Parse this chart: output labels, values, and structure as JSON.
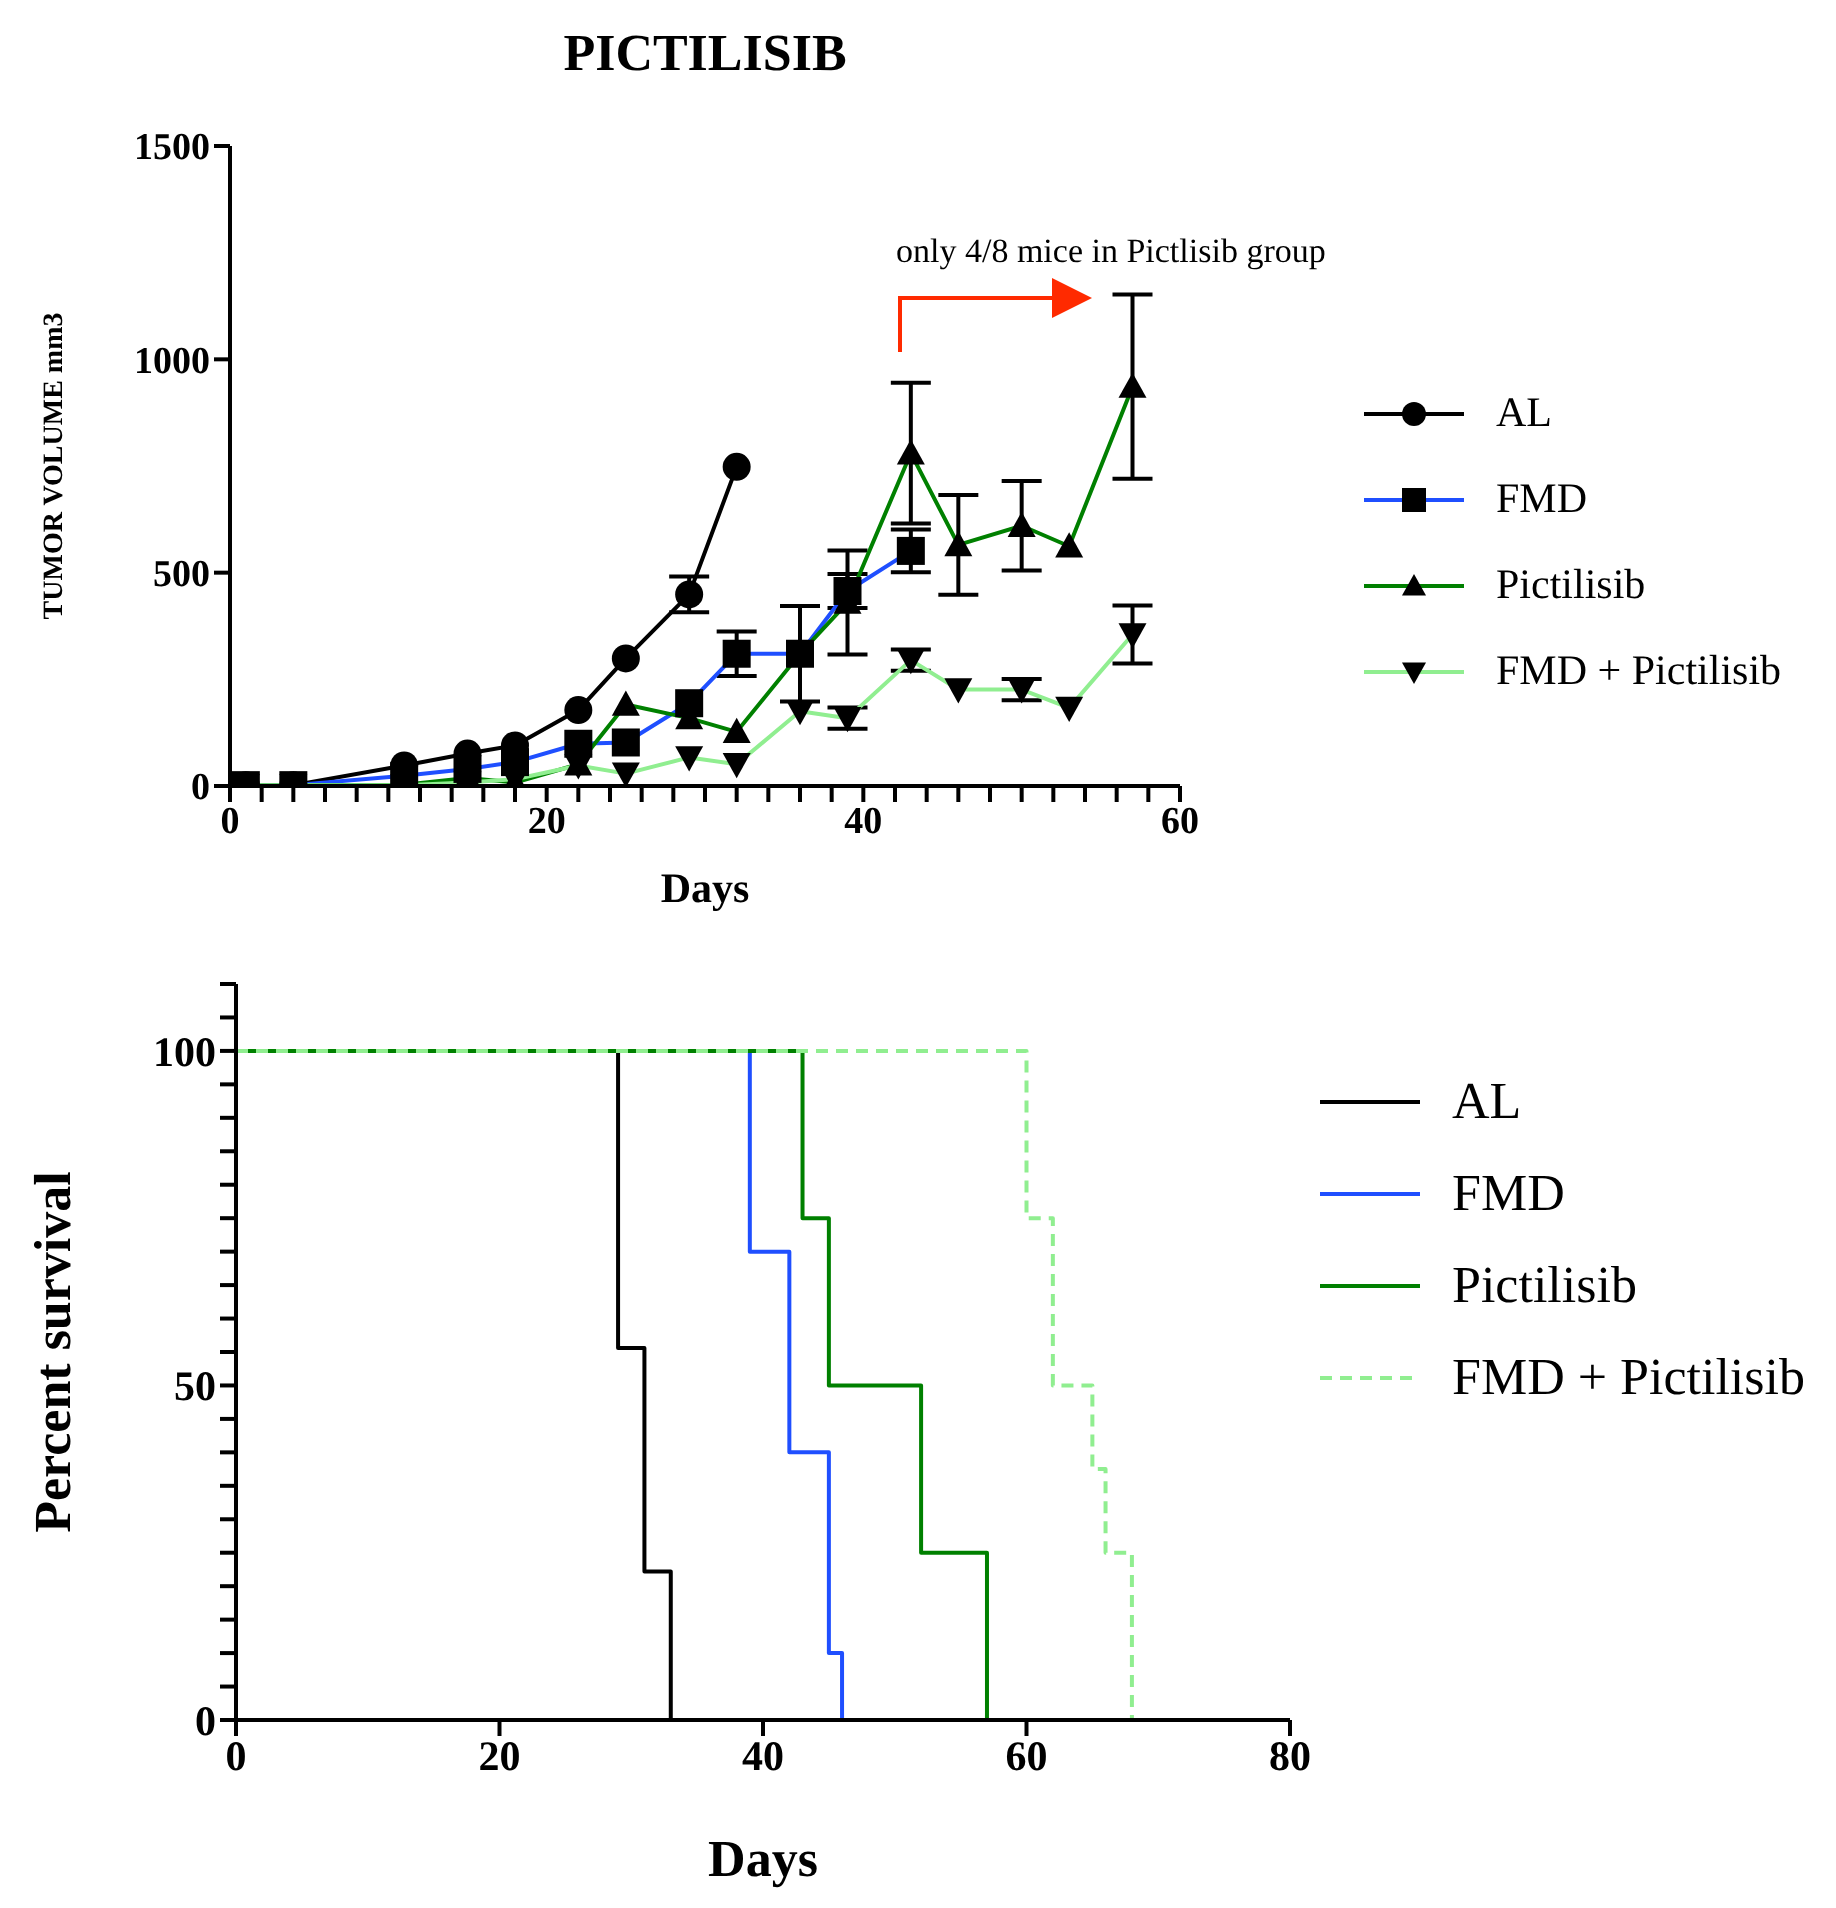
{
  "chart_data": [
    {
      "type": "line",
      "title": "PICTILISIB",
      "xlabel": "Days",
      "ylabel": "TUMOR VOLUME mm3",
      "annotations": [
        "only 4/8 mice in Pictlisib group"
      ],
      "legend": "right",
      "xlim": [
        0,
        60
      ],
      "ylim": [
        0,
        1500
      ],
      "xticks": [
        0,
        {
          "value": 2,
          "label": null
        },
        {
          "value": 4,
          "label": null
        },
        {
          "value": 6,
          "label": null
        },
        {
          "value": 8,
          "label": null
        },
        {
          "value": 10,
          "label": null
        },
        {
          "value": 12,
          "label": null
        },
        {
          "value": 14,
          "label": null
        },
        {
          "value": 16,
          "label": null
        },
        {
          "value": 18,
          "label": null
        },
        20,
        {
          "value": 22,
          "label": null
        },
        {
          "value": 24,
          "label": null
        },
        {
          "value": 26,
          "label": null
        },
        {
          "value": 28,
          "label": null
        },
        {
          "value": 30,
          "label": null
        },
        {
          "value": 32,
          "label": null
        },
        {
          "value": 34,
          "label": null
        },
        {
          "value": 36,
          "label": null
        },
        {
          "value": 38,
          "label": null
        },
        40,
        {
          "value": 42,
          "label": null
        },
        {
          "value": 44,
          "label": null
        },
        {
          "value": 46,
          "label": null
        },
        {
          "value": 48,
          "label": null
        },
        {
          "value": 50,
          "label": null
        },
        {
          "value": 52,
          "label": null
        },
        {
          "value": 54,
          "label": null
        },
        {
          "value": 56,
          "label": null
        },
        {
          "value": 58,
          "label": null
        },
        60
      ],
      "yticks": [
        0,
        500,
        1000,
        1500
      ],
      "series": [
        {
          "name": "AL",
          "color": "#000000",
          "marker": "circle",
          "x": [
            1,
            4,
            11,
            15,
            18,
            22,
            25,
            29,
            32
          ],
          "values": [
            2,
            2,
            48,
            76,
            95,
            178,
            299,
            449,
            748
          ],
          "errors": [
            null,
            null,
            null,
            null,
            null,
            null,
            null,
            42,
            null
          ]
        },
        {
          "name": "FMD",
          "color": "#1f4fff",
          "marker": "square",
          "x": [
            1,
            4,
            11,
            15,
            18,
            22,
            25,
            29,
            32,
            36,
            39,
            43
          ],
          "values": [
            2,
            2,
            24,
            40,
            56,
            99,
            102,
            194,
            310,
            310,
            457,
            551
          ],
          "errors": [
            null,
            null,
            null,
            null,
            null,
            null,
            null,
            null,
            52,
            null,
            40,
            50
          ]
        },
        {
          "name": "Pictilisib",
          "color": "#008000",
          "marker": "triangle",
          "x": [
            1,
            4,
            11,
            15,
            18,
            22,
            25,
            29,
            32,
            36,
            39,
            43,
            46,
            50,
            53,
            57
          ],
          "values": [
            2,
            2,
            3,
            19,
            8,
            51,
            191,
            159,
            127,
            310,
            430,
            780,
            565,
            610,
            562,
            936
          ],
          "errors": [
            null,
            null,
            null,
            null,
            null,
            null,
            null,
            null,
            null,
            112,
            122,
            165,
            117,
            105,
            null,
            216
          ]
        },
        {
          "name": "FMD + Pictilisib",
          "color": "#90ee90",
          "marker": "triangle-down",
          "x": [
            1,
            4,
            11,
            15,
            18,
            22,
            25,
            29,
            32,
            36,
            39,
            43,
            46,
            50,
            53,
            57
          ],
          "values": [
            2,
            2,
            2,
            8,
            16,
            48,
            29,
            67,
            51,
            175,
            159,
            295,
            226,
            226,
            183,
            355
          ],
          "errors": [
            null,
            null,
            null,
            null,
            null,
            null,
            null,
            null,
            null,
            null,
            25,
            25,
            null,
            25,
            null,
            68
          ]
        }
      ]
    },
    {
      "type": "step",
      "xlabel": "Days",
      "ylabel": "Percent survival",
      "legend": "right",
      "xlim": [
        0,
        80
      ],
      "ylim": [
        0,
        110
      ],
      "xticks": [
        0,
        20,
        40,
        60,
        80
      ],
      "yticks": [
        0,
        {
          "value": 5,
          "label": null
        },
        {
          "value": 10,
          "label": null
        },
        {
          "value": 15,
          "label": null
        },
        {
          "value": 20,
          "label": null
        },
        {
          "value": 25,
          "label": null
        },
        {
          "value": 30,
          "label": null
        },
        {
          "value": 35,
          "label": null
        },
        {
          "value": 40,
          "label": null
        },
        {
          "value": 45,
          "label": null
        },
        50,
        {
          "value": 55,
          "label": null
        },
        {
          "value": 60,
          "label": null
        },
        {
          "value": 65,
          "label": null
        },
        {
          "value": 70,
          "label": null
        },
        {
          "value": 75,
          "label": null
        },
        {
          "value": 80,
          "label": null
        },
        {
          "value": 85,
          "label": null
        },
        {
          "value": 90,
          "label": null
        },
        {
          "value": 95,
          "label": null
        },
        100,
        {
          "value": 105,
          "label": null
        },
        {
          "value": 110,
          "label": null
        }
      ],
      "series": [
        {
          "name": "AL",
          "color": "#000000",
          "line_style": "solid",
          "x": [
            0,
            29,
            31,
            33
          ],
          "values": [
            100,
            55.6,
            22.2,
            0
          ]
        },
        {
          "name": "FMD",
          "color": "#1f4fff",
          "line_style": "solid",
          "x": [
            0,
            39,
            42,
            45,
            46
          ],
          "values": [
            100,
            70,
            40,
            10,
            0
          ]
        },
        {
          "name": "Pictilisib",
          "color": "#008000",
          "line_style": "solid",
          "x": [
            0,
            43,
            45,
            52,
            57
          ],
          "values": [
            100,
            75,
            50,
            25,
            0
          ]
        },
        {
          "name": "FMD + Pictilisib",
          "color": "#90ee90",
          "line_style": "dashed",
          "x": [
            0,
            60,
            62,
            65,
            66,
            68
          ],
          "values": [
            100,
            75,
            50,
            37.5,
            25,
            0
          ]
        }
      ]
    }
  ]
}
